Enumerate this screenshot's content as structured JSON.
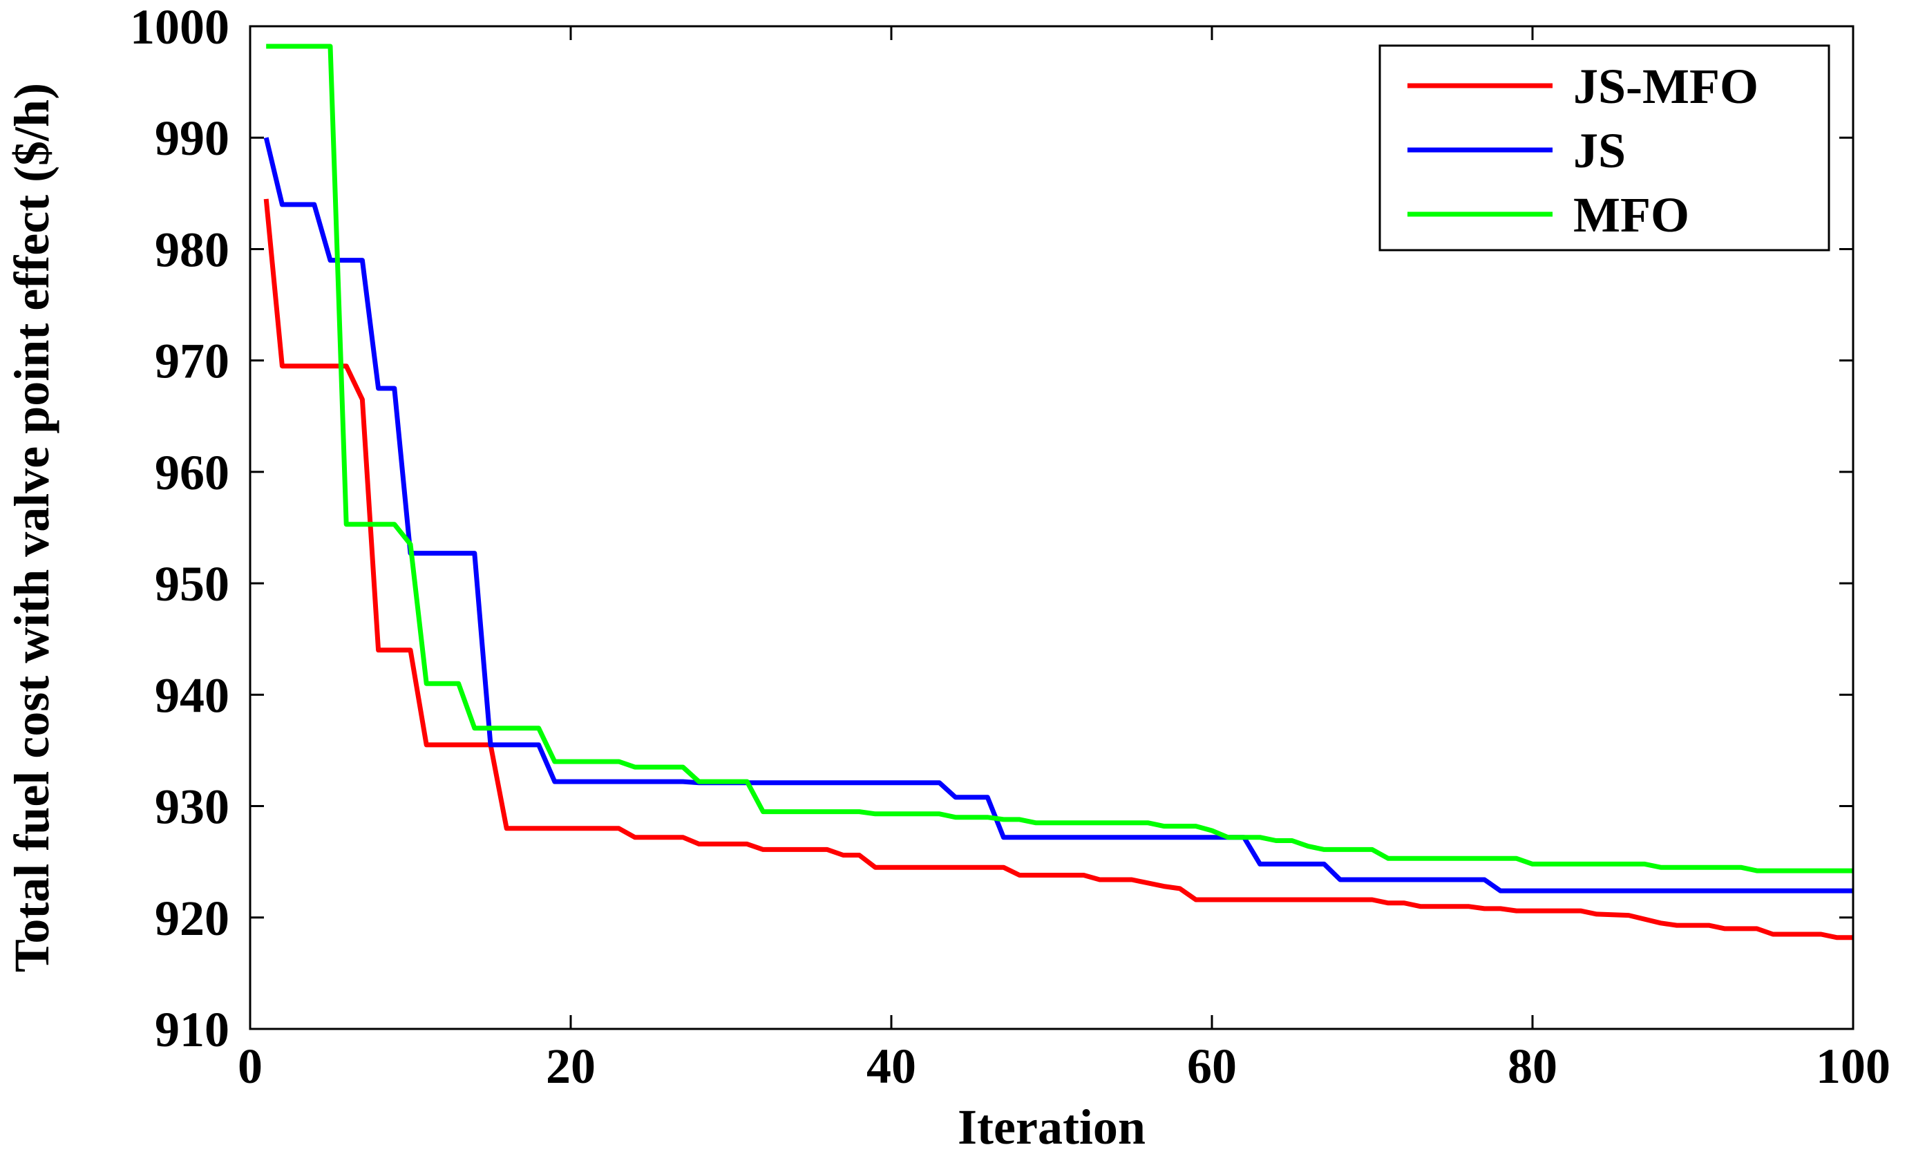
{
  "chart_data": {
    "type": "line",
    "title": "",
    "xlabel": "Iteration",
    "ylabel": "Total fuel cost with valve point effect ($/h)",
    "xlim": [
      0,
      100
    ],
    "ylim": [
      910,
      1000
    ],
    "xticks": [
      0,
      20,
      40,
      60,
      80,
      100
    ],
    "yticks": [
      910,
      920,
      930,
      940,
      950,
      960,
      970,
      980,
      990,
      1000
    ],
    "grid": false,
    "legend_position": "top-right",
    "series": [
      {
        "name": "JS-MFO",
        "color": "#ff0000",
        "x": [
          1,
          2,
          6,
          7,
          8,
          10,
          11,
          15,
          16,
          23,
          24,
          27,
          28,
          31,
          32,
          36,
          37,
          38,
          39,
          47,
          48,
          52,
          53,
          55,
          57,
          58,
          59,
          70,
          71,
          72,
          73,
          76,
          77,
          78,
          79,
          83,
          84,
          86,
          88,
          89,
          91,
          92,
          94,
          95,
          98,
          99,
          100
        ],
        "y": [
          984.5,
          969.5,
          969.5,
          966.5,
          944,
          944,
          935.5,
          935.5,
          928,
          928,
          927.2,
          927.2,
          926.6,
          926.6,
          926.1,
          926.1,
          925.6,
          925.6,
          924.5,
          924.5,
          923.8,
          923.8,
          923.4,
          923.4,
          922.8,
          922.6,
          921.6,
          921.6,
          921.3,
          921.3,
          921.0,
          921.0,
          920.8,
          920.8,
          920.6,
          920.6,
          920.3,
          920.2,
          919.5,
          919.3,
          919.3,
          919.0,
          919.0,
          918.5,
          918.5,
          918.2,
          918.2
        ]
      },
      {
        "name": "JS",
        "color": "#0000ff",
        "x": [
          1,
          2,
          4,
          5,
          7,
          8,
          9,
          10,
          14,
          15,
          18,
          19,
          27,
          28,
          43,
          44,
          46,
          47,
          62,
          63,
          67,
          68,
          77,
          78,
          100
        ],
        "y": [
          990,
          984,
          984,
          979,
          979,
          967.5,
          967.5,
          952.7,
          952.7,
          935.5,
          935.5,
          932.2,
          932.2,
          932.1,
          932.1,
          930.8,
          930.8,
          927.2,
          927.2,
          924.8,
          924.8,
          923.4,
          923.4,
          922.4,
          922.4
        ]
      },
      {
        "name": "MFO",
        "color": "#00ff00",
        "x": [
          1,
          5,
          6,
          9,
          10,
          11,
          13,
          14,
          18,
          19,
          23,
          24,
          27,
          28,
          31,
          32,
          38,
          39,
          43,
          44,
          46,
          47,
          48,
          49,
          56,
          57,
          59,
          60,
          61,
          63,
          64,
          65,
          66,
          67,
          70,
          71,
          79,
          80,
          87,
          88,
          93,
          94,
          100
        ],
        "y": [
          998.2,
          998.2,
          955.3,
          955.3,
          953.5,
          941,
          941,
          937,
          937,
          934,
          934,
          933.5,
          933.5,
          932.2,
          932.2,
          929.5,
          929.5,
          929.3,
          929.3,
          929.0,
          929.0,
          928.8,
          928.8,
          928.5,
          928.5,
          928.2,
          928.2,
          927.8,
          927.2,
          927.2,
          926.9,
          926.9,
          926.4,
          926.1,
          926.1,
          925.3,
          925.3,
          924.8,
          924.8,
          924.5,
          924.5,
          924.2,
          924.2
        ]
      }
    ]
  }
}
